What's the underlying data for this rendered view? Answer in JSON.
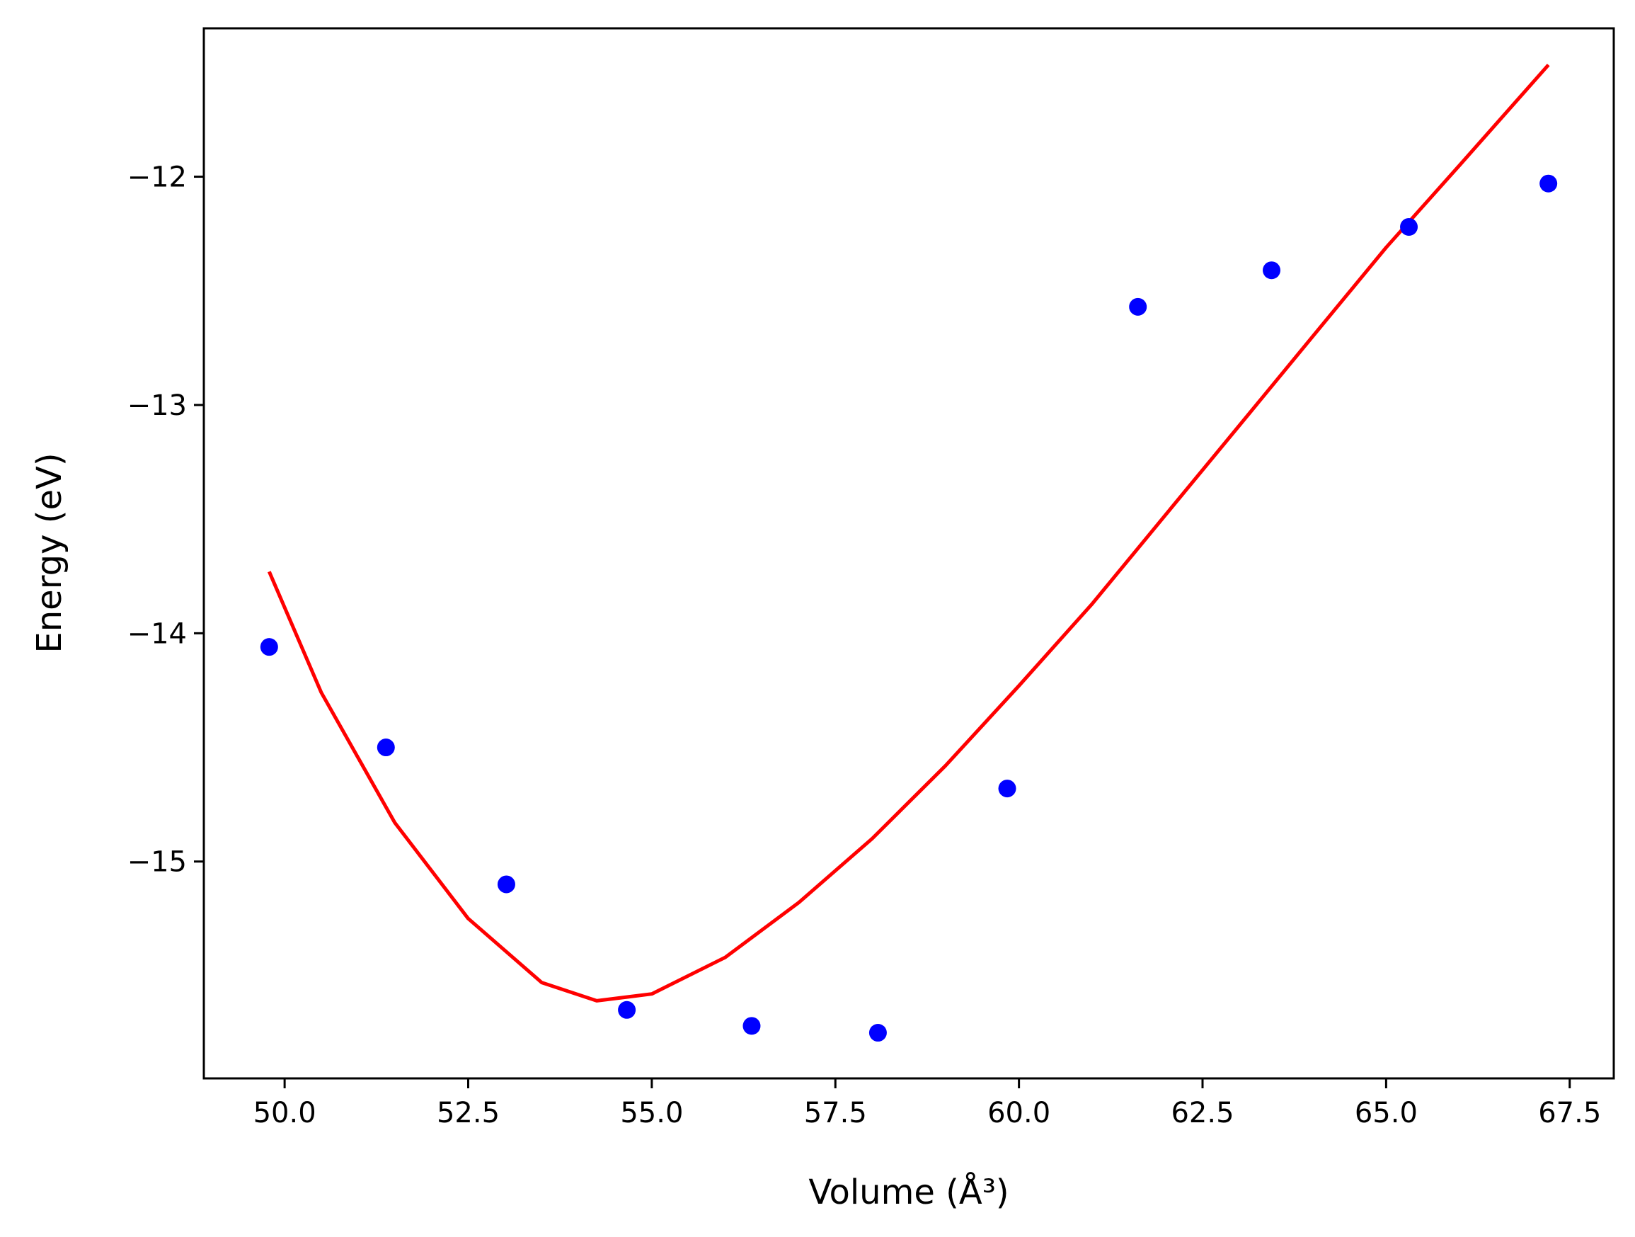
{
  "chart_data": {
    "type": "scatter",
    "xlabel": "Volume (Å³)",
    "ylabel": "Energy (eV)",
    "xlim": [
      48.9,
      68.1
    ],
    "ylim": [
      -15.95,
      -11.35
    ],
    "xticks": [
      50.0,
      52.5,
      55.0,
      57.5,
      60.0,
      62.5,
      65.0,
      67.5
    ],
    "xtick_labels": [
      "50.0",
      "52.5",
      "55.0",
      "57.5",
      "60.0",
      "62.5",
      "65.0",
      "67.5"
    ],
    "yticks": [
      -12,
      -13,
      -14,
      -15
    ],
    "ytick_labels": [
      "−12",
      "−13",
      "−14",
      "−15"
    ],
    "series": [
      {
        "kind": "points",
        "color": "#0000ff",
        "x": [
          49.79,
          51.38,
          53.02,
          54.66,
          56.36,
          58.08,
          59.84,
          61.62,
          63.44,
          65.31,
          67.21
        ],
        "y": [
          -14.06,
          -14.5,
          -15.1,
          -15.65,
          -15.72,
          -15.75,
          -14.68,
          -12.57,
          -12.41,
          -12.22,
          -12.03
        ]
      },
      {
        "kind": "fit-line",
        "color": "#ff0000",
        "x": [
          49.79,
          50.5,
          51.5,
          52.5,
          53.5,
          54.25,
          55.0,
          56.0,
          57.0,
          58.0,
          59.0,
          60.0,
          61.0,
          62.0,
          63.0,
          64.0,
          65.0,
          66.0,
          67.21
        ],
        "y": [
          -13.73,
          -14.26,
          -14.83,
          -15.25,
          -15.53,
          -15.61,
          -15.58,
          -15.42,
          -15.18,
          -14.9,
          -14.58,
          -14.23,
          -13.87,
          -13.48,
          -13.09,
          -12.7,
          -12.31,
          -11.95,
          -11.51
        ]
      }
    ]
  }
}
